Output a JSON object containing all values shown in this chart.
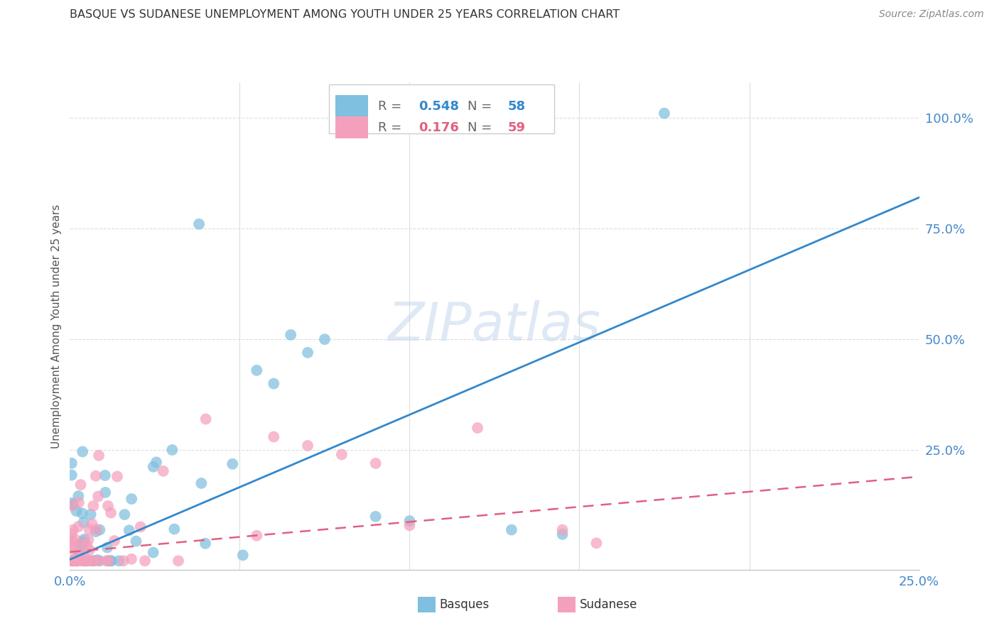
{
  "title": "BASQUE VS SUDANESE UNEMPLOYMENT AMONG YOUTH UNDER 25 YEARS CORRELATION CHART",
  "source": "Source: ZipAtlas.com",
  "ylabel": "Unemployment Among Youth under 25 years",
  "watermark": "ZIPatlas",
  "legend_blue_R": "0.548",
  "legend_blue_N": "58",
  "legend_pink_R": "0.176",
  "legend_pink_N": "59",
  "legend_blue_label": "Basques",
  "legend_pink_label": "Sudanese",
  "blue_color": "#7fbfdf",
  "pink_color": "#f4a0bc",
  "blue_line_color": "#3388cc",
  "pink_line_color": "#e06080",
  "axis_color": "#4488cc",
  "text_color": "#444444",
  "grid_color": "#dddddd",
  "xlim": [
    0.0,
    0.25
  ],
  "ylim": [
    -0.02,
    1.08
  ],
  "blue_trend": [
    0.0,
    0.003,
    0.25,
    0.82
  ],
  "pink_trend": [
    0.0,
    0.02,
    0.25,
    0.19
  ]
}
